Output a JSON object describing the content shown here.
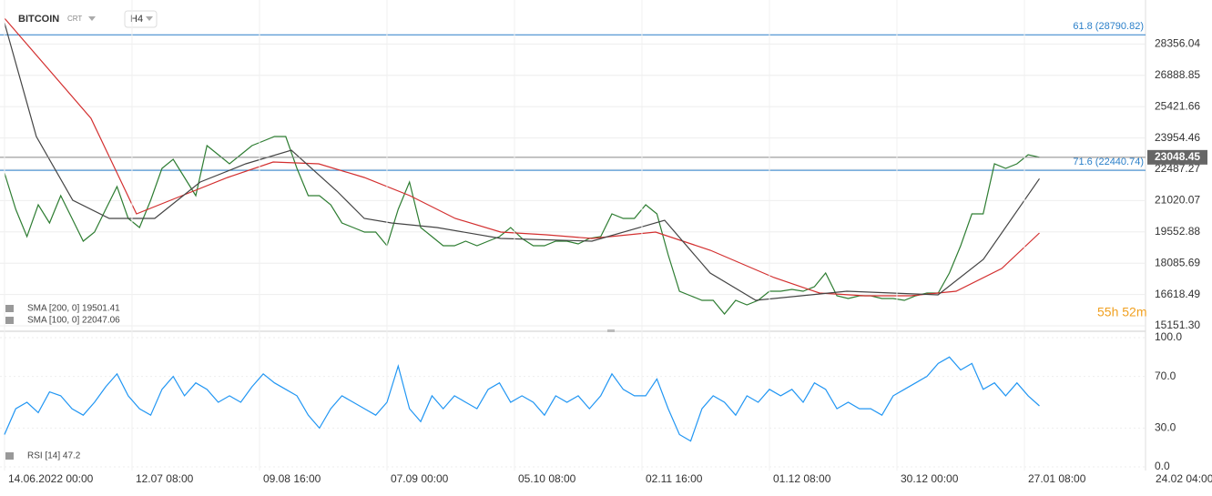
{
  "header": {
    "symbol": "BITCOIN",
    "market": "CRT",
    "interval": "H4",
    "timer": "55h 52m"
  },
  "chart_data": [
    {
      "type": "line",
      "xlim": [
        -24,
        6086
      ],
      "ylim": [
        14895,
        30420
      ],
      "yticks": [
        28356.04,
        26888.85,
        25421.66,
        23954.46,
        22487.27,
        21020.07,
        19552.88,
        18085.69,
        16618.49,
        {
          "value": 15151.3,
          "label": "15151.30"
        }
      ],
      "grid": true,
      "last_price": 23048.45,
      "levels": [
        {
          "value": 28790.82,
          "label": "61.8 (28790.82)",
          "color": "#2a7fc9"
        },
        {
          "value": 22440.74,
          "label": "71.6 (22440.74)",
          "color": "#2a7fc9"
        }
      ],
      "series": [
        {
          "color": "#2e7d32",
          "x": [
            0,
            60,
            120,
            180,
            240,
            300,
            360,
            420,
            480,
            540,
            600,
            660,
            720,
            780,
            840,
            900,
            960,
            1020,
            1080,
            1140,
            1200,
            1260,
            1320,
            1380,
            1440,
            1500,
            1560,
            1620,
            1680,
            1740,
            1800,
            1860,
            1920,
            1980,
            2040,
            2100,
            2160,
            2220,
            2280,
            2340,
            2400,
            2460,
            2520,
            2580,
            2640,
            2700,
            2760,
            2820,
            2880,
            2940,
            3000,
            3060,
            3120,
            3180,
            3240,
            3300,
            3360,
            3420,
            3480,
            3540,
            3600,
            3660,
            3720,
            3780,
            3840,
            3900,
            3960,
            4020,
            4080,
            4140,
            4200,
            4260,
            4320,
            4380,
            4440,
            4500,
            4560,
            4620,
            4680,
            4740,
            4800,
            4860,
            4920,
            4980,
            5040,
            5100,
            5160,
            5220,
            5280,
            5340,
            5400,
            5460,
            5520
          ],
          "values": [
            22316,
            20610,
            19330,
            20823,
            19970,
            21250,
            20183,
            19117,
            19544,
            20610,
            21676,
            20183,
            19757,
            21037,
            22530,
            22956,
            22103,
            21250,
            23596,
            23169,
            22742,
            23169,
            23596,
            23809,
            24022,
            24022,
            22530,
            21250,
            21250,
            20823,
            19970,
            19757,
            19544,
            19544,
            18904,
            20610,
            21890,
            19757,
            19330,
            18904,
            18904,
            19117,
            18904,
            19117,
            19330,
            19757,
            19245,
            18904,
            18904,
            19117,
            19117,
            18990,
            19245,
            19330,
            20397,
            20183,
            20183,
            20823,
            20397,
            18478,
            16772,
            16558,
            16345,
            16345,
            15705,
            16345,
            16132,
            16345,
            16772,
            16772,
            16857,
            16772,
            16985,
            17625,
            16558,
            16430,
            16558,
            16558,
            16430,
            16430,
            16345,
            16558,
            16686,
            16686,
            17625,
            18904,
            20397,
            20397,
            22742,
            22530,
            22742,
            23169,
            23048.45
          ]
        },
        {
          "name": "SMA [200, 0] 19501.41",
          "color": "#d32f2f",
          "x": [
            0,
            461,
            704,
            947,
            1190,
            1433,
            1676,
            1919,
            2162,
            2404,
            2647,
            2890,
            3133,
            3473,
            3765,
            4105,
            4347,
            4590,
            4833,
            5076,
            5319,
            5520
          ],
          "values": [
            29567,
            24875,
            20397,
            21250,
            22103,
            22828,
            22742,
            22103,
            21250,
            20183,
            19544,
            19416,
            19245,
            19544,
            18691,
            17412,
            16686,
            16558,
            16558,
            16772,
            17838,
            19501.41
          ]
        },
        {
          "name": "SMA [100, 0] 22047.06",
          "color": "#444444",
          "x": [
            0,
            170,
            364,
            559,
            801,
            1044,
            1287,
            1530,
            1773,
            1919,
            2064,
            2307,
            2647,
            3133,
            3521,
            3764,
            4007,
            4250,
            4493,
            4736,
            4979,
            5221,
            5520
          ],
          "values": [
            29353,
            24022,
            21037,
            20183,
            20183,
            21890,
            22742,
            23383,
            21463,
            20183,
            19970,
            19757,
            19245,
            19117,
            20098,
            17625,
            16345,
            16558,
            16772,
            16686,
            16600,
            18264,
            22047.06
          ]
        }
      ]
    },
    {
      "type": "line",
      "xlim": [
        -24,
        6086
      ],
      "ylim": [
        0,
        100
      ],
      "yticks": [
        {
          "value": 100,
          "label": "100.0"
        },
        {
          "value": 70,
          "label": "70.0"
        },
        {
          "value": 30,
          "label": "30.0"
        },
        {
          "value": 0,
          "label": "0.0"
        }
      ],
      "grid": true,
      "xticks": [
        {
          "value": 0,
          "label": "14.06.2022  00:00"
        },
        {
          "value": 680,
          "label": "12.07  08:00"
        },
        {
          "value": 1360,
          "label": "09.08  16:00"
        },
        {
          "value": 2040,
          "label": "07.09  00:00"
        },
        {
          "value": 2720,
          "label": "05.10  08:00"
        },
        {
          "value": 3400,
          "label": "02.11  16:00"
        },
        {
          "value": 4080,
          "label": "01.12  08:00"
        },
        {
          "value": 4760,
          "label": "30.12  00:00"
        },
        {
          "value": 5440,
          "label": "27.01  08:00"
        },
        {
          "value": 6120,
          "label": "24.02  04:00"
        }
      ],
      "series": [
        {
          "name": "RSI [14] 47.2",
          "color": "#2196f3",
          "x": [
            0,
            60,
            120,
            180,
            240,
            300,
            360,
            420,
            480,
            540,
            600,
            660,
            720,
            780,
            840,
            900,
            960,
            1020,
            1080,
            1140,
            1200,
            1260,
            1320,
            1380,
            1440,
            1500,
            1560,
            1620,
            1680,
            1740,
            1800,
            1860,
            1920,
            1980,
            2040,
            2100,
            2160,
            2220,
            2280,
            2340,
            2400,
            2460,
            2520,
            2580,
            2640,
            2700,
            2760,
            2820,
            2880,
            2940,
            3000,
            3060,
            3120,
            3180,
            3240,
            3300,
            3360,
            3420,
            3480,
            3540,
            3600,
            3660,
            3720,
            3780,
            3840,
            3900,
            3960,
            4020,
            4080,
            4140,
            4200,
            4260,
            4320,
            4380,
            4440,
            4500,
            4560,
            4620,
            4680,
            4740,
            4800,
            4860,
            4920,
            4980,
            5040,
            5100,
            5160,
            5220,
            5280,
            5340,
            5400,
            5460,
            5520
          ],
          "values": [
            25,
            45,
            50,
            42,
            58,
            55,
            45,
            40,
            50,
            62,
            72,
            55,
            45,
            40,
            60,
            70,
            55,
            65,
            60,
            50,
            55,
            50,
            62,
            72,
            65,
            60,
            55,
            40,
            30,
            45,
            55,
            50,
            45,
            40,
            50,
            78,
            45,
            35,
            55,
            45,
            55,
            50,
            45,
            60,
            65,
            50,
            55,
            50,
            40,
            55,
            50,
            55,
            45,
            55,
            72,
            60,
            55,
            55,
            68,
            45,
            25,
            20,
            45,
            55,
            50,
            40,
            55,
            50,
            60,
            55,
            60,
            50,
            65,
            60,
            45,
            50,
            45,
            45,
            40,
            55,
            60,
            65,
            70,
            80,
            85,
            75,
            80,
            60,
            65,
            55,
            65,
            55,
            47.2
          ]
        }
      ]
    }
  ]
}
